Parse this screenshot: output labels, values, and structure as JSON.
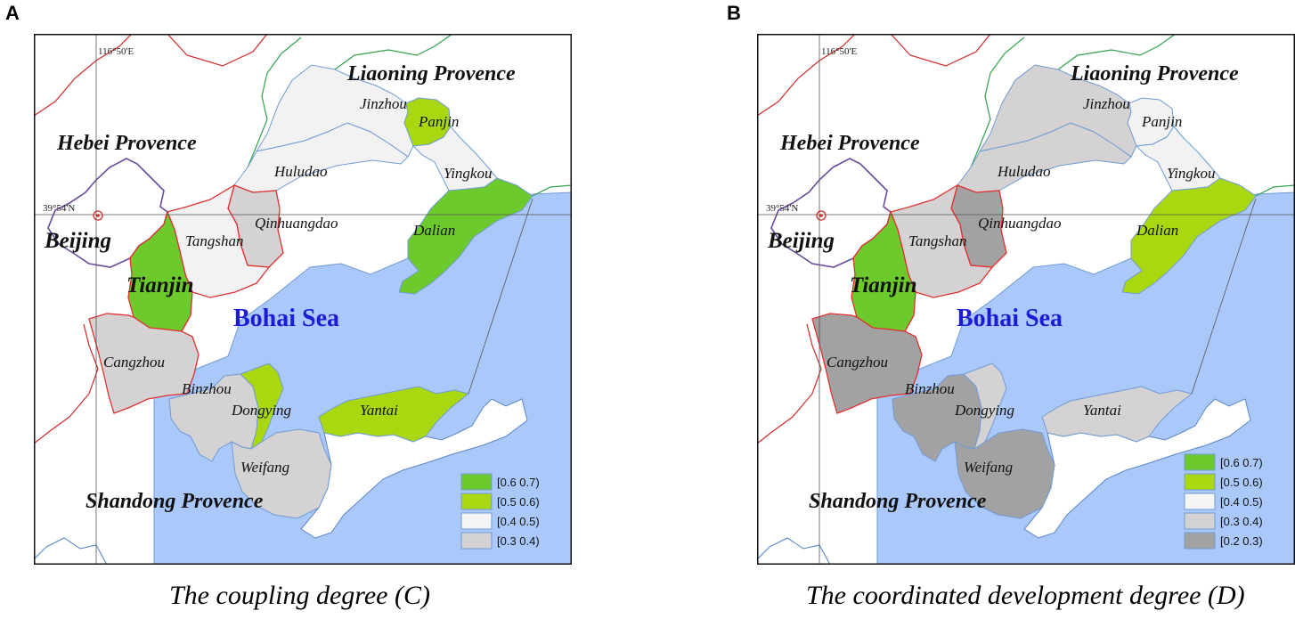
{
  "panels": [
    {
      "letter": "A",
      "caption_pre": "The coupling degree (",
      "caption_var": "C",
      "caption_post": ")",
      "colors": {
        "Jinzhou": "#f2f2f2",
        "Panjin": "#a9d811",
        "Yingkou": "#f2f2f2",
        "Huludao": "#f2f2f2",
        "Dalian": "#6dca2c",
        "Qinhuangdao": "#d4d2d2",
        "Tangshan": "#f2f2f2",
        "Tianjin": "#6dca2c",
        "Cangzhou": "#d4d2d2",
        "Binzhou": "#d4d2d2",
        "Dongying": "#a9d811",
        "Yantai": "#a9d811",
        "Weifang": "#d4d2d2"
      },
      "legend": [
        {
          "label": "[0.6 0.7)",
          "color": "#6dca2c"
        },
        {
          "label": "[0.5 0.6)",
          "color": "#a9d811"
        },
        {
          "label": "[0.4 0.5)",
          "color": "#f5f5f5"
        },
        {
          "label": "[0.3 0.4)",
          "color": "#d4d2d2"
        }
      ]
    },
    {
      "letter": "B",
      "caption_pre": "The coordinated development degree (",
      "caption_var": "D",
      "caption_post": ")",
      "colors": {
        "Jinzhou": "#d4d2d2",
        "Panjin": "#f2f2f2",
        "Yingkou": "#f2f2f2",
        "Huludao": "#d4d2d2",
        "Dalian": "#a9d811",
        "Qinhuangdao": "#a3a2a2",
        "Tangshan": "#d4d2d2",
        "Tianjin": "#6dca2c",
        "Cangzhou": "#a3a2a2",
        "Binzhou": "#a3a2a2",
        "Dongying": "#d4d2d2",
        "Yantai": "#d4d2d2",
        "Weifang": "#a3a2a2"
      },
      "legend": [
        {
          "label": "[0.6 0.7)",
          "color": "#6dca2c"
        },
        {
          "label": "[0.5 0.6)",
          "color": "#a9d811"
        },
        {
          "label": "[0.4 0.5)",
          "color": "#f5f5f5"
        },
        {
          "label": "[0.3 0.4)",
          "color": "#d4d2d2"
        },
        {
          "label": "[0.2 0.3)",
          "color": "#a3a2a2"
        }
      ]
    }
  ],
  "map_labels": {
    "liaoning": "Liaoning Provence",
    "hebei": "Hebei Provence",
    "shandong": "Shandong Provence",
    "beijing": "Beijing",
    "tianjin": "Tianjin",
    "sea": "Bohai Sea",
    "lon": "116°50'E",
    "lat": "39°54'N",
    "cities": {
      "Jinzhou": "Jinzhou",
      "Panjin": "Panjin",
      "Yingkou": "Yingkou",
      "Huludao": "Huludao",
      "Dalian": "Dalian",
      "Qinhuangdao": "Qinhuangdao",
      "Tangshan": "Tangshan",
      "Cangzhou": "Cangzhou",
      "Binzhou": "Binzhou",
      "Dongying": "Dongying",
      "Yantai": "Yantai",
      "Weifang": "Weifang"
    }
  }
}
